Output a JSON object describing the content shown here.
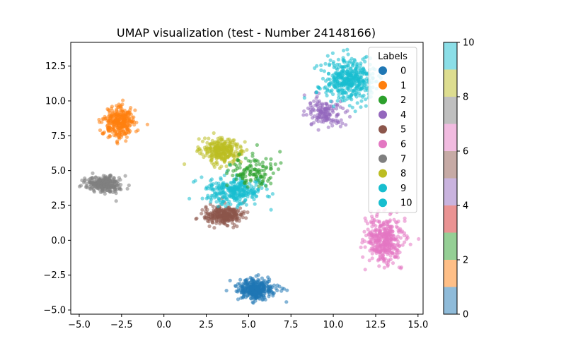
{
  "chart_data": {
    "type": "scatter",
    "title": "UMAP visualization (test - Number 24148166)",
    "xlabel": "",
    "ylabel": "",
    "xlim": [
      -5.5,
      15.3
    ],
    "ylim": [
      -5.3,
      14.2
    ],
    "x_ticks": [
      -5.0,
      -2.5,
      0.0,
      2.5,
      5.0,
      7.5,
      10.0,
      12.5,
      15.0
    ],
    "x_tick_labels": [
      "−5.0",
      "−2.5",
      "0.0",
      "2.5",
      "5.0",
      "7.5",
      "10.0",
      "12.5",
      "15.0"
    ],
    "y_ticks": [
      -5.0,
      -2.5,
      0.0,
      2.5,
      5.0,
      7.5,
      10.0,
      12.5
    ],
    "y_tick_labels": [
      "−5.0",
      "−2.5",
      "0.0",
      "2.5",
      "5.0",
      "7.5",
      "10.0",
      "12.5"
    ],
    "grid": false,
    "legend": {
      "title": "Labels",
      "placement": "top-right",
      "entries": [
        {
          "label": "0",
          "color": "#1f77b4"
        },
        {
          "label": "1",
          "color": "#ff7f0e"
        },
        {
          "label": "2",
          "color": "#2ca02c"
        },
        {
          "label": "4",
          "color": "#9467bd"
        },
        {
          "label": "5",
          "color": "#8c564b"
        },
        {
          "label": "6",
          "color": "#e377c2"
        },
        {
          "label": "7",
          "color": "#7f7f7f"
        },
        {
          "label": "8",
          "color": "#bcbd22"
        },
        {
          "label": "9",
          "color": "#17becf"
        },
        {
          "label": "10",
          "color": "#17becf"
        }
      ]
    },
    "colorbar": {
      "range": [
        0,
        10
      ],
      "ticks": [
        0,
        2,
        4,
        6,
        8,
        10
      ],
      "tick_labels": [
        "0",
        "2",
        "4",
        "6",
        "8",
        "10"
      ],
      "colors": [
        "#8fbbd9",
        "#ffbf87",
        "#95cf95",
        "#ea9393",
        "#c9b3de",
        "#c6aaa5",
        "#f1bbe0",
        "#bfbfbf",
        "#dddd90",
        "#8bdee7"
      ]
    },
    "clusters": [
      {
        "label": "0",
        "color": "#1f77b4",
        "center": [
          5.4,
          -3.5
        ],
        "spread": [
          0.55,
          0.35
        ],
        "count": 340
      },
      {
        "label": "1",
        "color": "#ff7f0e",
        "center": [
          -2.6,
          8.5
        ],
        "spread": [
          0.45,
          0.55
        ],
        "count": 300
      },
      {
        "label": "7",
        "color": "#7f7f7f",
        "center": [
          -3.5,
          4.0
        ],
        "spread": [
          0.5,
          0.3
        ],
        "count": 260
      },
      {
        "label": "8",
        "color": "#bcbd22",
        "center": [
          3.4,
          6.4
        ],
        "spread": [
          0.55,
          0.45
        ],
        "count": 300
      },
      {
        "label": "5",
        "color": "#8c564b",
        "center": [
          3.6,
          1.8
        ],
        "spread": [
          0.55,
          0.35
        ],
        "count": 280
      },
      {
        "label": "9",
        "color": "#17becf",
        "center": [
          4.2,
          3.5
        ],
        "spread": [
          0.9,
          0.5
        ],
        "count": 300
      },
      {
        "label": "2",
        "color": "#2ca02c",
        "center": [
          5.3,
          5.0
        ],
        "spread": [
          0.7,
          0.6
        ],
        "count": 120
      },
      {
        "label": "4",
        "color": "#9467bd",
        "center": [
          9.5,
          9.2
        ],
        "spread": [
          0.6,
          0.5
        ],
        "count": 150
      },
      {
        "label": "10",
        "color": "#17becf",
        "center": [
          11.0,
          11.5
        ],
        "spread": [
          0.75,
          0.75
        ],
        "count": 420
      },
      {
        "label": "6",
        "color": "#e377c2",
        "center": [
          13.0,
          0.0
        ],
        "spread": [
          0.55,
          0.8
        ],
        "count": 380
      }
    ]
  }
}
